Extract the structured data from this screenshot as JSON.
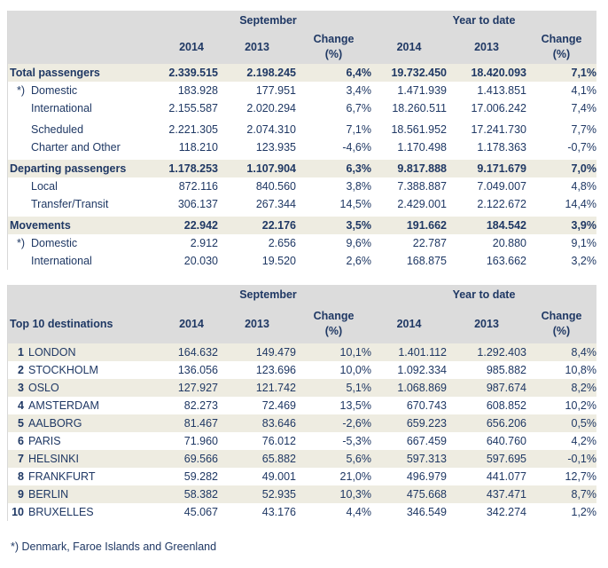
{
  "table1": {
    "header": {
      "september": "September",
      "ytd": "Year to date",
      "y2014": "2014",
      "y2013": "2013",
      "change": "Change",
      "pct": "(%)"
    },
    "rows": [
      {
        "label": "Total passengers",
        "type": "total",
        "values": [
          "2.339.515",
          "2.198.245",
          "6,4%",
          "19.732.450",
          "18.420.093",
          "7,1%"
        ]
      },
      {
        "label": "Domestic",
        "type": "sub",
        "star": "*)",
        "values": [
          "183.928",
          "177.951",
          "3,4%",
          "1.471.939",
          "1.413.851",
          "4,1%"
        ]
      },
      {
        "label": "International",
        "type": "sub",
        "values": [
          "2.155.587",
          "2.020.294",
          "6,7%",
          "18.260.511",
          "17.006.242",
          "7,4%"
        ]
      },
      {
        "type": "gap"
      },
      {
        "label": "Scheduled",
        "type": "sub",
        "values": [
          "2.221.305",
          "2.074.310",
          "7,1%",
          "18.561.952",
          "17.241.730",
          "7,7%"
        ]
      },
      {
        "label": "Charter and Other",
        "type": "sub",
        "values": [
          "118.210",
          "123.935",
          "-4,6%",
          "1.170.498",
          "1.178.363",
          "-0,7%"
        ]
      },
      {
        "type": "gap"
      },
      {
        "label": "Departing passengers",
        "type": "total",
        "values": [
          "1.178.253",
          "1.107.904",
          "6,3%",
          "9.817.888",
          "9.171.679",
          "7,0%"
        ]
      },
      {
        "label": "Local",
        "type": "sub",
        "values": [
          "872.116",
          "840.560",
          "3,8%",
          "7.388.887",
          "7.049.007",
          "4,8%"
        ]
      },
      {
        "label": "Transfer/Transit",
        "type": "sub",
        "values": [
          "306.137",
          "267.344",
          "14,5%",
          "2.429.001",
          "2.122.672",
          "14,4%"
        ]
      },
      {
        "type": "gap"
      },
      {
        "label": "Movements",
        "type": "total",
        "values": [
          "22.942",
          "22.176",
          "3,5%",
          "191.662",
          "184.542",
          "3,9%"
        ]
      },
      {
        "label": "Domestic",
        "type": "sub",
        "star": "*)",
        "values": [
          "2.912",
          "2.656",
          "9,6%",
          "22.787",
          "20.880",
          "9,1%"
        ]
      },
      {
        "label": "International",
        "type": "sub",
        "values": [
          "20.030",
          "19.520",
          "2,6%",
          "168.875",
          "163.662",
          "3,2%"
        ]
      }
    ]
  },
  "table2": {
    "header": {
      "title": "Top 10 destinations",
      "september": "September",
      "ytd": "Year to date",
      "y2014": "2014",
      "y2013": "2013",
      "change": "Change",
      "pct": "(%)"
    },
    "rows": [
      {
        "rank": "1",
        "city": "LONDON",
        "values": [
          "164.632",
          "149.479",
          "10,1%",
          "1.401.112",
          "1.292.403",
          "8,4%"
        ]
      },
      {
        "rank": "2",
        "city": "STOCKHOLM",
        "values": [
          "136.056",
          "123.696",
          "10,0%",
          "1.092.334",
          "985.882",
          "10,8%"
        ]
      },
      {
        "rank": "3",
        "city": "OSLO",
        "values": [
          "127.927",
          "121.742",
          "5,1%",
          "1.068.869",
          "987.674",
          "8,2%"
        ]
      },
      {
        "rank": "4",
        "city": "AMSTERDAM",
        "values": [
          "82.273",
          "72.469",
          "13,5%",
          "670.743",
          "608.852",
          "10,2%"
        ]
      },
      {
        "rank": "5",
        "city": "AALBORG",
        "values": [
          "81.467",
          "83.646",
          "-2,6%",
          "659.223",
          "656.206",
          "0,5%"
        ]
      },
      {
        "rank": "6",
        "city": "PARIS",
        "values": [
          "71.960",
          "76.012",
          "-5,3%",
          "667.459",
          "640.760",
          "4,2%"
        ]
      },
      {
        "rank": "7",
        "city": "HELSINKI",
        "values": [
          "69.566",
          "65.882",
          "5,6%",
          "597.313",
          "597.695",
          "-0,1%"
        ]
      },
      {
        "rank": "8",
        "city": "FRANKFURT",
        "values": [
          "59.282",
          "49.001",
          "21,0%",
          "496.979",
          "441.077",
          "12,7%"
        ]
      },
      {
        "rank": "9",
        "city": "BERLIN",
        "values": [
          "58.382",
          "52.935",
          "10,3%",
          "475.668",
          "437.471",
          "8,7%"
        ]
      },
      {
        "rank": "10",
        "city": "BRUXELLES",
        "values": [
          "45.067",
          "43.176",
          "4,4%",
          "346.549",
          "342.274",
          "1,2%"
        ]
      }
    ]
  },
  "footnote": "*)  Denmark, Faroe Islands and Greenland",
  "colors": {
    "text": "#1f3864",
    "header_bg": "#dcdcdc",
    "highlight_bg": "#eeece1"
  }
}
